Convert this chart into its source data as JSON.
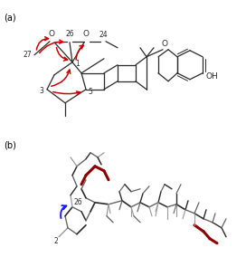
{
  "fig_label_a": "(a)",
  "fig_label_b": "(b)",
  "background_color": "#ffffff",
  "panel_a": {
    "structure_color": "#2a2a2a",
    "arrow_color": "#cc0000",
    "font_size": 6.5
  },
  "panel_b": {
    "arrow_color": "#1a1aff",
    "dark_red": "#8b0000",
    "dark_gray": "#2a2a2a",
    "med_gray": "#666666",
    "light_gray": "#999999",
    "label_26": "26",
    "label_2": "2"
  }
}
